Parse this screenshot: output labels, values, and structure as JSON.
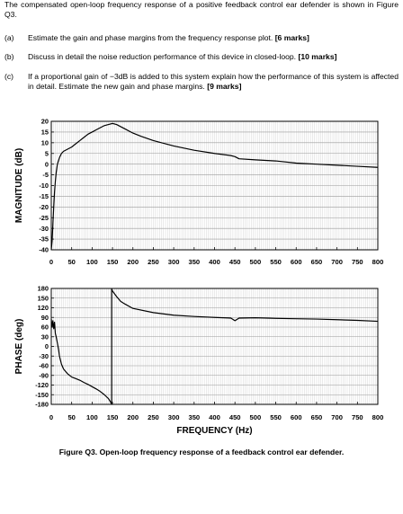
{
  "question": {
    "intro": "The compensated open-loop frequency response of a positive feedback control ear defender is shown in Figure Q3.",
    "parts": [
      {
        "label": "(a)",
        "text": "Estimate the gain and phase margins from the frequency response plot.",
        "marks": "[6 marks]"
      },
      {
        "label": "(b)",
        "text": "Discuss in detail the noise reduction performance of this device in closed-loop.",
        "marks": "[10 marks]"
      },
      {
        "label": "(c)",
        "text": "If a proportional gain of −3dB is added to this system explain how the performance of this system is affected in detail. Estimate the new gain and phase margins.",
        "marks": "[9 marks]"
      }
    ]
  },
  "figure": {
    "caption": "Figure Q3. Open-loop frequency response of a feedback control ear defender."
  },
  "chart_data": [
    {
      "type": "line",
      "ylabel": "MAGNITUDE (dB)",
      "xlabel": "",
      "xlim": [
        0,
        800
      ],
      "ylim": [
        -40,
        20
      ],
      "x_ticks": [
        0,
        50,
        100,
        150,
        200,
        250,
        300,
        350,
        400,
        450,
        500,
        550,
        600,
        650,
        700,
        750,
        800
      ],
      "y_ticks": [
        20,
        15,
        10,
        5,
        0,
        -5,
        -10,
        -15,
        -20,
        -25,
        -30,
        -35,
        -40
      ],
      "grid": true,
      "series": [
        {
          "x": [
            0,
            2,
            4,
            6,
            8,
            10,
            12,
            15,
            20,
            25,
            30,
            40,
            50,
            60,
            70,
            80,
            90,
            100,
            110,
            120,
            130,
            140,
            150,
            160,
            170,
            180,
            200,
            220,
            250,
            300,
            350,
            400,
            440,
            450,
            460,
            500,
            550,
            600,
            650,
            700,
            750,
            800
          ],
          "y": [
            -40,
            -36,
            -28,
            -20,
            -13,
            -8,
            -4,
            0,
            3,
            5,
            6,
            7,
            8,
            9.5,
            11,
            12.5,
            14,
            15,
            16,
            17,
            18,
            18.5,
            19,
            18.5,
            17.5,
            16.5,
            14.5,
            13,
            11,
            8.5,
            6.5,
            5,
            4,
            3.5,
            2.5,
            2,
            1.5,
            0.5,
            0,
            -0.5,
            -1,
            -1.5
          ]
        }
      ]
    },
    {
      "type": "line",
      "ylabel": "PHASE (deg)",
      "xlabel": "FREQUENCY (Hz)",
      "xlim": [
        0,
        800
      ],
      "ylim": [
        -180,
        180
      ],
      "x_ticks": [
        0,
        50,
        100,
        150,
        200,
        250,
        300,
        350,
        400,
        450,
        500,
        550,
        600,
        650,
        700,
        750,
        800
      ],
      "y_ticks": [
        180,
        150,
        120,
        90,
        60,
        30,
        0,
        -30,
        -60,
        -90,
        -120,
        -150,
        -180
      ],
      "grid": true,
      "series": [
        {
          "x": [
            0,
            2,
            4,
            6,
            8,
            10,
            12,
            15,
            18,
            20,
            25,
            30,
            40,
            50,
            60,
            70,
            80,
            90,
            100,
            110,
            120,
            130,
            140,
            145,
            148,
            148,
            150,
            160,
            170,
            180,
            200,
            250,
            300,
            350,
            400,
            440,
            450,
            460,
            500,
            550,
            600,
            650,
            700,
            750,
            800
          ],
          "y": [
            85,
            60,
            80,
            55,
            75,
            40,
            30,
            10,
            -10,
            -30,
            -55,
            -70,
            -85,
            -95,
            -100,
            -105,
            -112,
            -118,
            -125,
            -132,
            -140,
            -150,
            -162,
            -172,
            -180,
            178,
            172,
            155,
            140,
            132,
            118,
            105,
            97,
            93,
            90,
            88,
            80,
            88,
            89,
            87,
            86,
            85,
            83,
            81,
            78
          ]
        }
      ]
    }
  ]
}
